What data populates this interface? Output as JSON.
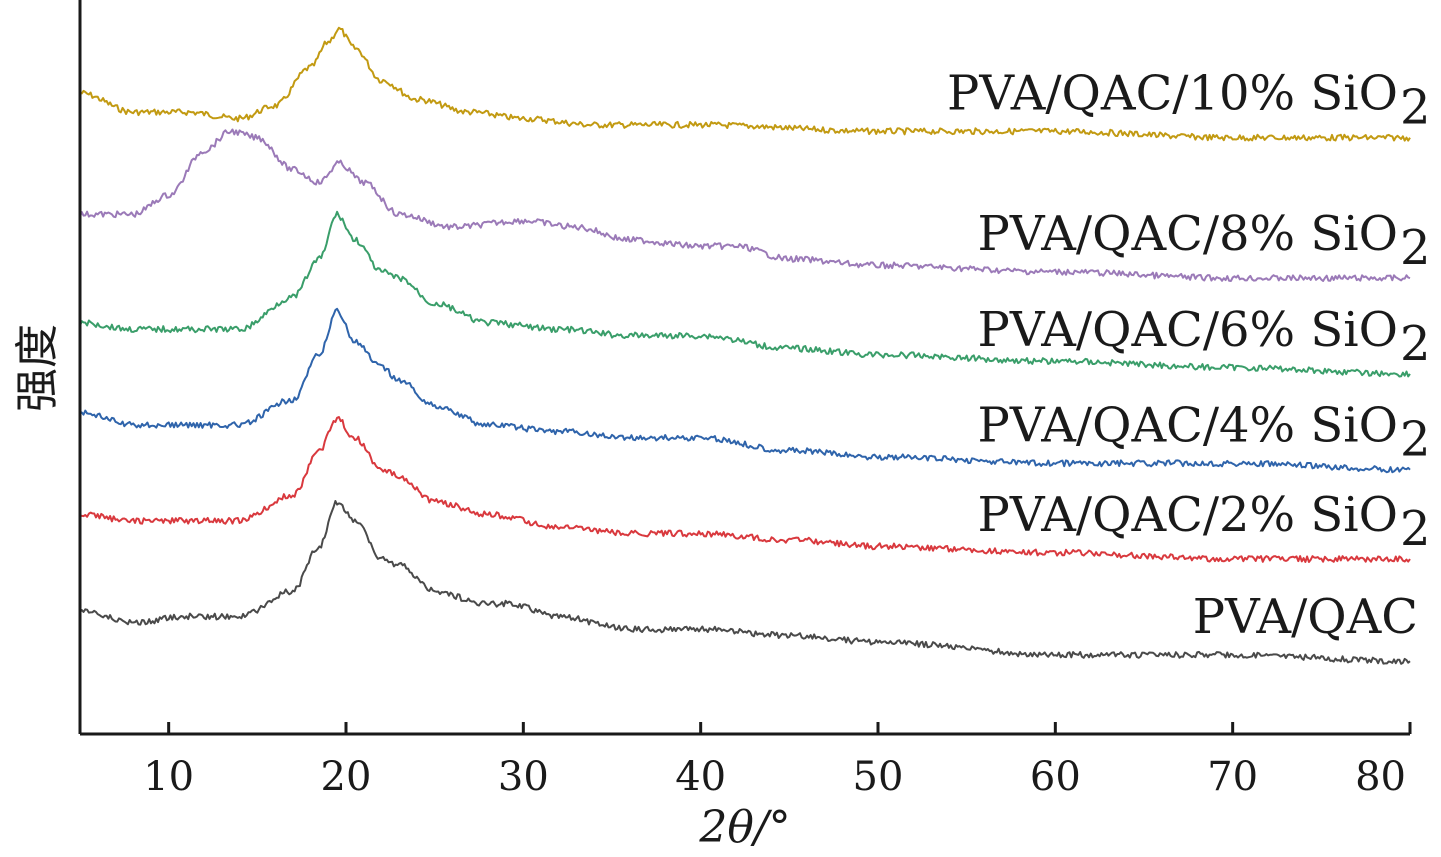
{
  "chart_data": {
    "type": "line",
    "xlabel": "2θ/°",
    "ylabel": "强度",
    "xlim": [
      5,
      80
    ],
    "xticks": [
      10,
      20,
      30,
      40,
      50,
      60,
      70,
      80
    ],
    "y_ticks_shown": false,
    "grid": false,
    "legend": "inline labels at right",
    "series": [
      {
        "name": "PVA/QAC/10% SiO2",
        "label_text": "PVA/QAC/10% SiO",
        "label_sub": "2",
        "color": "#c29a12",
        "points": [
          [
            5,
            0.89
          ],
          [
            8,
            0.86
          ],
          [
            11,
            0.86
          ],
          [
            14,
            0.85
          ],
          [
            16,
            0.87
          ],
          [
            18,
            0.93
          ],
          [
            19,
            0.97
          ],
          [
            19.6,
            0.99
          ],
          [
            20.5,
            0.96
          ],
          [
            22,
            0.91
          ],
          [
            24,
            0.88
          ],
          [
            27,
            0.86
          ],
          [
            30,
            0.85
          ],
          [
            34,
            0.84
          ],
          [
            40,
            0.84
          ],
          [
            50,
            0.83
          ],
          [
            60,
            0.83
          ],
          [
            70,
            0.82
          ],
          [
            80,
            0.82
          ]
        ]
      },
      {
        "name": "PVA/QAC/8% SiO2",
        "label_text": "PVA/QAC/8% SiO",
        "label_sub": "2",
        "color": "#9b7ab8",
        "points": [
          [
            5,
            0.7
          ],
          [
            8,
            0.7
          ],
          [
            10,
            0.73
          ],
          [
            12,
            0.8
          ],
          [
            13.5,
            0.83
          ],
          [
            15,
            0.82
          ],
          [
            17,
            0.77
          ],
          [
            18.5,
            0.75
          ],
          [
            19.6,
            0.78
          ],
          [
            21,
            0.75
          ],
          [
            23,
            0.7
          ],
          [
            26,
            0.68
          ],
          [
            30,
            0.69
          ],
          [
            33,
            0.68
          ],
          [
            36,
            0.66
          ],
          [
            40,
            0.65
          ],
          [
            42,
            0.65
          ],
          [
            45,
            0.63
          ],
          [
            50,
            0.62
          ],
          [
            60,
            0.61
          ],
          [
            70,
            0.6
          ],
          [
            80,
            0.6
          ]
        ]
      },
      {
        "name": "PVA/QAC/6% SiO2",
        "label_text": "PVA/QAC/6% SiO",
        "label_sub": "2",
        "color": "#3a9e6a",
        "points": [
          [
            5,
            0.53
          ],
          [
            8,
            0.52
          ],
          [
            11,
            0.52
          ],
          [
            14,
            0.52
          ],
          [
            17,
            0.57
          ],
          [
            18.5,
            0.63
          ],
          [
            19.5,
            0.7
          ],
          [
            20.5,
            0.66
          ],
          [
            22,
            0.61
          ],
          [
            23,
            0.6
          ],
          [
            25,
            0.56
          ],
          [
            28,
            0.53
          ],
          [
            32,
            0.52
          ],
          [
            36,
            0.51
          ],
          [
            40,
            0.51
          ],
          [
            45,
            0.49
          ],
          [
            50,
            0.48
          ],
          [
            60,
            0.47
          ],
          [
            70,
            0.46
          ],
          [
            80,
            0.45
          ]
        ]
      },
      {
        "name": "PVA/QAC/4% SiO2",
        "label_text": "PVA/QAC/4% SiO",
        "label_sub": "2",
        "color": "#2f64ab",
        "points": [
          [
            5,
            0.39
          ],
          [
            8,
            0.37
          ],
          [
            11,
            0.37
          ],
          [
            14,
            0.37
          ],
          [
            17,
            0.41
          ],
          [
            18.5,
            0.48
          ],
          [
            19.5,
            0.55
          ],
          [
            20.5,
            0.5
          ],
          [
            22,
            0.46
          ],
          [
            23,
            0.44
          ],
          [
            25,
            0.4
          ],
          [
            28,
            0.37
          ],
          [
            32,
            0.36
          ],
          [
            36,
            0.35
          ],
          [
            40,
            0.35
          ],
          [
            45,
            0.33
          ],
          [
            50,
            0.32
          ],
          [
            60,
            0.31
          ],
          [
            70,
            0.31
          ],
          [
            80,
            0.3
          ]
        ]
      },
      {
        "name": "PVA/QAC/2% SiO2",
        "label_text": "PVA/QAC/2% SiO",
        "label_sub": "2",
        "color": "#d9393e",
        "points": [
          [
            5,
            0.23
          ],
          [
            8,
            0.22
          ],
          [
            11,
            0.22
          ],
          [
            14,
            0.22
          ],
          [
            17,
            0.26
          ],
          [
            18.5,
            0.33
          ],
          [
            19.5,
            0.38
          ],
          [
            20.5,
            0.35
          ],
          [
            22,
            0.3
          ],
          [
            23,
            0.29
          ],
          [
            25,
            0.25
          ],
          [
            28,
            0.23
          ],
          [
            32,
            0.21
          ],
          [
            36,
            0.2
          ],
          [
            40,
            0.2
          ],
          [
            45,
            0.19
          ],
          [
            50,
            0.18
          ],
          [
            60,
            0.17
          ],
          [
            70,
            0.16
          ],
          [
            80,
            0.16
          ]
        ]
      },
      {
        "name": "PVA/QAC",
        "label_text": "PVA/QAC",
        "label_sub": "",
        "color": "#4a4a4a",
        "points": [
          [
            5,
            0.08
          ],
          [
            8,
            0.06
          ],
          [
            11,
            0.07
          ],
          [
            14,
            0.07
          ],
          [
            17,
            0.11
          ],
          [
            18.5,
            0.18
          ],
          [
            19.5,
            0.25
          ],
          [
            20.5,
            0.22
          ],
          [
            22,
            0.16
          ],
          [
            23,
            0.15
          ],
          [
            25,
            0.11
          ],
          [
            27.8,
            0.09
          ],
          [
            29.3,
            0.09
          ],
          [
            32,
            0.07
          ],
          [
            36,
            0.05
          ],
          [
            40,
            0.05
          ],
          [
            45,
            0.04
          ],
          [
            50,
            0.03
          ],
          [
            60,
            0.01
          ],
          [
            70,
            0.01
          ],
          [
            80,
            0.0
          ]
        ]
      }
    ]
  }
}
